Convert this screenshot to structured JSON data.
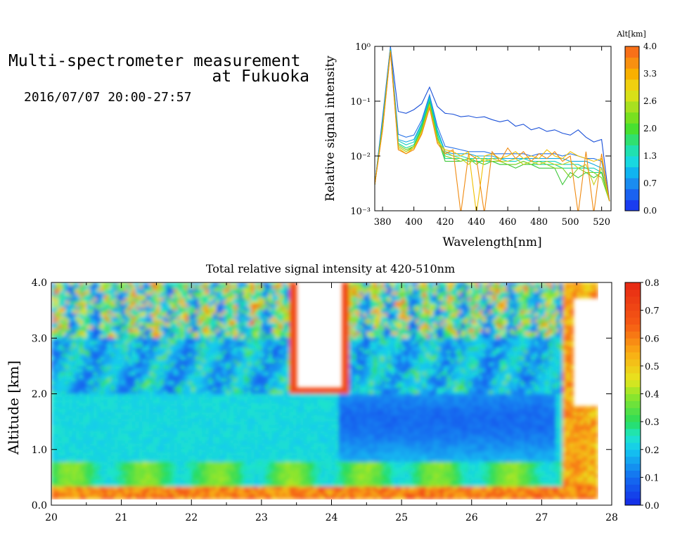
{
  "header": {
    "title_line1": "Multi-spectrometer measurement",
    "title_line2": "at Fukuoka",
    "datetime": "2016/07/07 20:00-27:57"
  },
  "chart_data": [
    {
      "type": "line",
      "xlabel": "Wavelength[nm]",
      "ylabel": "Relative signal intensity",
      "xlim": [
        375,
        526
      ],
      "ylim": [
        0.001,
        1
      ],
      "yscale": "log",
      "x_ticks": [
        "380",
        "400",
        "420",
        "440",
        "460",
        "480",
        "500",
        "520"
      ],
      "y_ticks": [
        "10⁻³",
        "10⁻²",
        "10⁻¹",
        "10⁰"
      ],
      "x": [
        375,
        380,
        385,
        390,
        395,
        400,
        405,
        410,
        415,
        420,
        425,
        430,
        435,
        440,
        445,
        450,
        455,
        460,
        465,
        470,
        475,
        480,
        485,
        490,
        495,
        500,
        505,
        510,
        515,
        520,
        525
      ],
      "series": [
        {
          "color": "#1a50d8",
          "values": [
            0.003,
            0.05,
            1.0,
            0.065,
            0.06,
            0.07,
            0.09,
            0.18,
            0.08,
            0.06,
            0.058,
            0.052,
            0.054,
            0.05,
            0.052,
            0.046,
            0.042,
            0.045,
            0.035,
            0.038,
            0.03,
            0.033,
            0.028,
            0.03,
            0.026,
            0.024,
            0.03,
            0.022,
            0.018,
            0.02,
            0.0015
          ]
        },
        {
          "color": "#2a74e8",
          "values": [
            0.003,
            0.045,
            0.95,
            0.025,
            0.022,
            0.024,
            0.045,
            0.13,
            0.035,
            0.015,
            0.014,
            0.013,
            0.012,
            0.012,
            0.012,
            0.011,
            0.011,
            0.011,
            0.011,
            0.011,
            0.01,
            0.011,
            0.011,
            0.011,
            0.01,
            0.011,
            0.01,
            0.009,
            0.009,
            0.008,
            0.0015
          ]
        },
        {
          "color": "#10a8e0",
          "values": [
            0.003,
            0.04,
            0.9,
            0.02,
            0.018,
            0.02,
            0.04,
            0.12,
            0.03,
            0.012,
            0.011,
            0.011,
            0.011,
            0.01,
            0.01,
            0.01,
            0.009,
            0.009,
            0.009,
            0.009,
            0.009,
            0.009,
            0.009,
            0.009,
            0.009,
            0.008,
            0.008,
            0.008,
            0.007,
            0.006,
            0.0015
          ]
        },
        {
          "color": "#12d0c0",
          "values": [
            0.003,
            0.04,
            0.88,
            0.019,
            0.016,
            0.018,
            0.038,
            0.11,
            0.028,
            0.011,
            0.01,
            0.01,
            0.009,
            0.009,
            0.009,
            0.009,
            0.009,
            0.008,
            0.008,
            0.009,
            0.008,
            0.008,
            0.008,
            0.008,
            0.007,
            0.007,
            0.007,
            0.006,
            0.006,
            0.005,
            0.0015
          ]
        },
        {
          "color": "#18d890",
          "values": [
            0.003,
            0.038,
            0.86,
            0.017,
            0.014,
            0.016,
            0.035,
            0.1,
            0.025,
            0.009,
            0.009,
            0.009,
            0.008,
            0.008,
            0.008,
            0.008,
            0.007,
            0.007,
            0.007,
            0.008,
            0.007,
            0.007,
            0.007,
            0.007,
            0.006,
            0.006,
            0.006,
            0.006,
            0.005,
            0.005,
            0.0015
          ]
        },
        {
          "color": "#3ec83a",
          "values": [
            0.003,
            0.035,
            0.85,
            0.015,
            0.012,
            0.015,
            0.032,
            0.095,
            0.022,
            0.008,
            0.008,
            0.008,
            0.009,
            0.008,
            0.007,
            0.008,
            0.007,
            0.007,
            0.006,
            0.007,
            0.007,
            0.006,
            0.006,
            0.006,
            0.003,
            0.005,
            0.004,
            0.005,
            0.004,
            0.005,
            0.0015
          ]
        },
        {
          "color": "#80d020",
          "values": [
            0.003,
            0.035,
            0.84,
            0.016,
            0.013,
            0.015,
            0.03,
            0.09,
            0.02,
            0.01,
            0.009,
            0.008,
            0.009,
            0.007,
            0.009,
            0.008,
            0.008,
            0.007,
            0.007,
            0.008,
            0.007,
            0.008,
            0.007,
            0.006,
            0.006,
            0.004,
            0.006,
            0.005,
            0.005,
            0.004,
            0.0015
          ]
        },
        {
          "color": "#c8d020",
          "values": [
            0.003,
            0.033,
            0.83,
            0.015,
            0.012,
            0.014,
            0.028,
            0.085,
            0.02,
            0.012,
            0.01,
            0.009,
            0.007,
            0.01,
            0.008,
            0.009,
            0.008,
            0.008,
            0.009,
            0.007,
            0.008,
            0.007,
            0.008,
            0.007,
            0.007,
            0.008,
            0.006,
            0.007,
            0.003,
            0.006,
            0.0015
          ]
        },
        {
          "color": "#f0c000",
          "values": [
            0.003,
            0.03,
            0.82,
            0.014,
            0.011,
            0.014,
            0.026,
            0.08,
            0.018,
            0.013,
            0.012,
            0.01,
            0.012,
            0.0009,
            0.01,
            0.011,
            0.009,
            0.01,
            0.012,
            0.009,
            0.01,
            0.009,
            0.013,
            0.01,
            0.009,
            0.012,
            0.01,
            0.009,
            0.008,
            0.009,
            0.0015
          ]
        },
        {
          "color": "#f08a10",
          "values": [
            0.003,
            0.03,
            0.8,
            0.013,
            0.011,
            0.013,
            0.025,
            0.075,
            0.017,
            0.011,
            0.013,
            0.0009,
            0.011,
            0.009,
            0.0009,
            0.012,
            0.008,
            0.014,
            0.009,
            0.012,
            0.008,
            0.011,
            0.009,
            0.012,
            0.008,
            0.01,
            0.0009,
            0.012,
            0.0009,
            0.011,
            0.0015
          ]
        }
      ],
      "colorbar": {
        "label": "Alt[km]",
        "ticks": [
          "0.0",
          "0.7",
          "1.3",
          "2.0",
          "2.6",
          "3.3",
          "4.0"
        ],
        "range": [
          0.0,
          4.0
        ]
      }
    },
    {
      "type": "heatmap",
      "title": "Total relative signal intensity at 420-510nm",
      "ylabel": "Altitude [km]",
      "xlim": [
        20,
        28
      ],
      "ylim": [
        0,
        4.0
      ],
      "x_ticks": [
        "20",
        "21",
        "22",
        "23",
        "24",
        "25",
        "26",
        "27",
        "28"
      ],
      "y_ticks": [
        "0.0",
        "1.0",
        "2.0",
        "3.0",
        "4.0"
      ],
      "colorbar": {
        "ticks": [
          "0.0",
          "0.1",
          "0.2",
          "0.3",
          "0.4",
          "0.5",
          "0.6",
          "0.7",
          "0.8"
        ],
        "range": [
          0.0,
          0.8
        ]
      }
    }
  ]
}
